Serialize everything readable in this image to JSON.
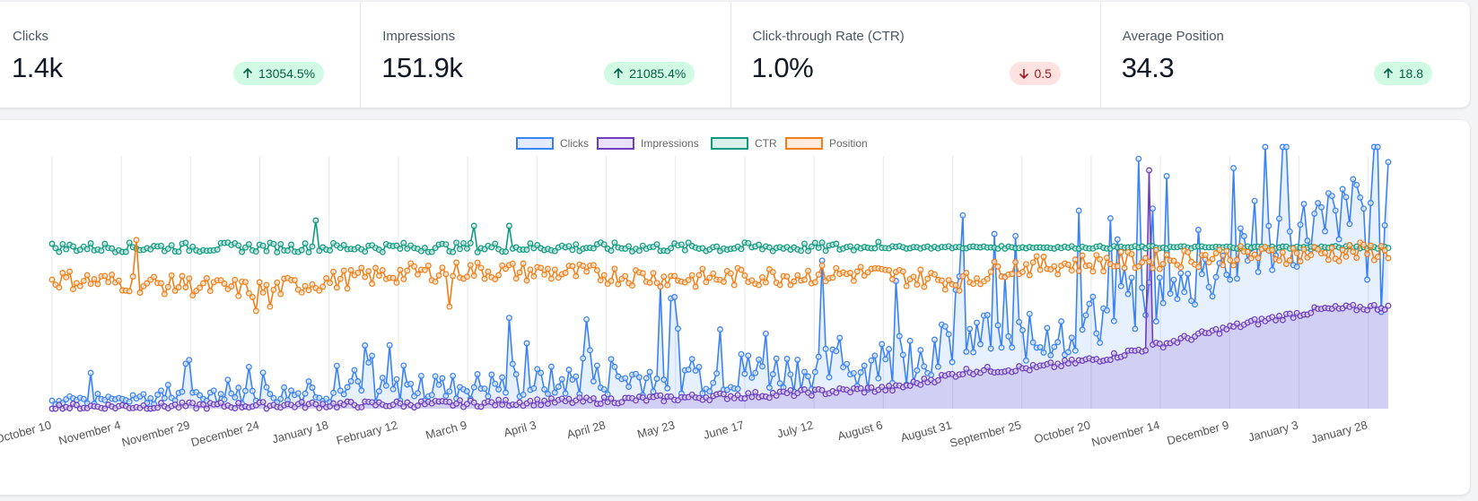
{
  "stats": [
    {
      "label": "Clicks",
      "value": "1.4k",
      "change": "13054.5%",
      "direction": "up"
    },
    {
      "label": "Impressions",
      "value": "151.9k",
      "change": "21085.4%",
      "direction": "up"
    },
    {
      "label": "Click-through Rate (CTR)",
      "value": "1.0%",
      "change": "0.5",
      "direction": "down"
    },
    {
      "label": "Average Position",
      "value": "34.3",
      "change": "18.8",
      "direction": "up"
    }
  ],
  "colors": {
    "up_bg": "#d1fae5",
    "up_text": "#065f46",
    "down_bg": "#fee2e2",
    "down_text": "#991b1b",
    "clicks": "#3b82f6",
    "impressions": "#6d3fc0",
    "ctr": "#0f9b7f",
    "position": "#f07f1a"
  },
  "chart_data": {
    "type": "line",
    "legend_position": "top",
    "grid": "vertical",
    "y_axis_visible": false,
    "x_tick_labels": [
      "October 10",
      "November 4",
      "November 29",
      "December 24",
      "January 18",
      "February 12",
      "March 9",
      "April 3",
      "April 28",
      "May 23",
      "June 17",
      "July 12",
      "August 6",
      "August 31",
      "September 25",
      "October 20",
      "November 14",
      "December 9",
      "January 3",
      "January 28"
    ],
    "series": [
      {
        "name": "Clicks",
        "color": "#3b82f6",
        "fill": true,
        "values_note": "",
        "segments": [
          [
            0,
            2
          ],
          [
            60,
            3
          ],
          [
            120,
            5
          ],
          [
            160,
            8
          ],
          [
            200,
            10
          ],
          [
            240,
            12
          ],
          [
            260,
            28
          ],
          [
            280,
            25
          ],
          [
            300,
            40
          ],
          [
            320,
            55
          ],
          [
            340,
            75
          ],
          [
            360,
            95
          ],
          [
            380,
            110
          ]
        ],
        "spike_points": [
          [
            14,
            6
          ],
          [
            40,
            10
          ],
          [
            92,
            4
          ],
          [
            112,
            8
          ],
          [
            143,
            10
          ],
          [
            157,
            12
          ],
          [
            174,
            18
          ],
          [
            188,
            16
          ],
          [
            215,
            20
          ],
          [
            228,
            22
          ],
          [
            236,
            40
          ],
          [
            241,
            45
          ],
          [
            252,
            26
          ],
          [
            262,
            35
          ],
          [
            273,
            38
          ],
          [
            283,
            50
          ],
          [
            295,
            65
          ],
          [
            310,
            75
          ],
          [
            320,
            68
          ],
          [
            335,
            80
          ],
          [
            348,
            95
          ],
          [
            354,
            88
          ],
          [
            362,
            110
          ],
          [
            366,
            105
          ],
          [
            374,
            80
          ],
          [
            378,
            60
          ]
        ]
      },
      {
        "name": "Impressions",
        "color": "#6d3fc0",
        "fill": true,
        "segments": [
          [
            0,
            1
          ],
          [
            60,
            2
          ],
          [
            120,
            3
          ],
          [
            160,
            5
          ],
          [
            200,
            8
          ],
          [
            240,
            12
          ],
          [
            260,
            22
          ],
          [
            280,
            24
          ],
          [
            300,
            30
          ],
          [
            320,
            40
          ],
          [
            340,
            50
          ],
          [
            360,
            58
          ],
          [
            380,
            60
          ]
        ],
        "spike_points": [
          [
            312,
            140
          ]
        ]
      },
      {
        "name": "CTR",
        "color": "#0f9b7f",
        "fill": false,
        "segments": [
          [
            0,
            120
          ],
          [
            380,
            120
          ]
        ],
        "spike_points": [
          [
            75,
            130
          ],
          [
            120,
            128
          ],
          [
            130,
            128
          ],
          [
            235,
            122
          ]
        ]
      },
      {
        "name": "Position",
        "color": "#f07f1a",
        "fill": false,
        "segments": [
          [
            0,
            58
          ],
          [
            60,
            50
          ],
          [
            80,
            57
          ],
          [
            100,
            62
          ],
          [
            120,
            64
          ],
          [
            150,
            62
          ],
          [
            180,
            58
          ],
          [
            230,
            62
          ],
          [
            260,
            56
          ],
          [
            270,
            66
          ],
          [
            300,
            70
          ],
          [
            330,
            74
          ],
          [
            380,
            78
          ]
        ],
        "spike_points": [
          [
            24,
            86
          ],
          [
            37,
            60
          ],
          [
            58,
            35
          ],
          [
            62,
            38
          ],
          [
            113,
            38
          ]
        ]
      }
    ]
  }
}
